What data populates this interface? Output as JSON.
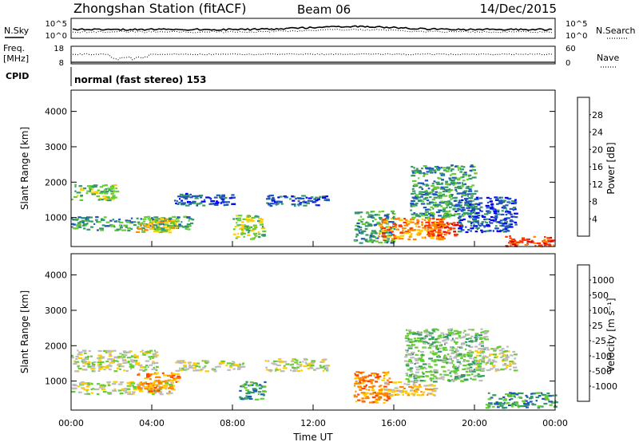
{
  "header": {
    "station": "Zhongshan Station (fitACF)",
    "beam": "Beam 06",
    "date": "14/Dec/2015"
  },
  "summary_panels": {
    "nsky_label": "N.Sky",
    "nsearch_label": "N.Search",
    "noise_ticks": [
      "10^5",
      "10^0"
    ],
    "freq_label_line1": "Freq.",
    "freq_label_line2": "[MHz]",
    "freq_ticks": [
      "18",
      "8"
    ],
    "nave_label": "Nave",
    "nave_ticks": [
      "60",
      "0"
    ],
    "cpid_label": "CPID",
    "cpid_text": "normal (fast stereo) 153"
  },
  "colorbars": {
    "power": {
      "title": "Power [dB]",
      "ticks": [
        "28",
        "24",
        "20",
        "16",
        "12",
        "8",
        "4"
      ],
      "colors": [
        "#0000ff",
        "#2255bb",
        "#339966",
        "#66cc33",
        "#ffcc00",
        "#ff8800",
        "#ff3300",
        "#dd0000"
      ]
    },
    "velocity": {
      "title": "Velocity [m s⁻¹]",
      "ticks": [
        "1000",
        "500",
        "100",
        "25",
        "-25",
        "-100",
        "-500",
        "-1000"
      ],
      "colors": [
        "#2233aa",
        "#2255bb",
        "#339966",
        "#66cc33",
        "#bbbbbb",
        "#ffcc00",
        "#ff8800",
        "#ff4400",
        "#dd0000"
      ]
    }
  },
  "chart_data": [
    {
      "type": "heatmap",
      "ylabel": "Slant Range [km]",
      "ylim": [
        180,
        4600
      ],
      "yticks": [
        "4000",
        "3000",
        "2000",
        "1000"
      ],
      "ytick_values": [
        4000,
        3000,
        2000,
        1000
      ],
      "xlim_hours": [
        0,
        24
      ],
      "regions": [
        {
          "t0": 0.0,
          "t1": 2.2,
          "r0": 1500,
          "r1": 1950,
          "level": 3
        },
        {
          "t0": 0.0,
          "t1": 6.0,
          "r0": 650,
          "r1": 1050,
          "level": 2
        },
        {
          "t0": 3.2,
          "t1": 5.2,
          "r0": 600,
          "r1": 1000,
          "level": 4
        },
        {
          "t0": 5.0,
          "t1": 8.0,
          "r0": 1350,
          "r1": 1700,
          "level": 1
        },
        {
          "t0": 8.0,
          "t1": 9.5,
          "r0": 400,
          "r1": 1100,
          "level": 3
        },
        {
          "t0": 9.6,
          "t1": 12.7,
          "r0": 1350,
          "r1": 1650,
          "level": 1
        },
        {
          "t0": 14.0,
          "t1": 16.0,
          "r0": 300,
          "r1": 1200,
          "level": 2
        },
        {
          "t0": 15.2,
          "t1": 18.5,
          "r0": 400,
          "r1": 1000,
          "level": 5
        },
        {
          "t0": 17.5,
          "t1": 19.3,
          "r0": 500,
          "r1": 900,
          "level": 6
        },
        {
          "t0": 16.8,
          "t1": 20.0,
          "r0": 1000,
          "r1": 2500,
          "level": 2
        },
        {
          "t0": 19.0,
          "t1": 22.0,
          "r0": 600,
          "r1": 1600,
          "level": 1
        },
        {
          "t0": 21.5,
          "t1": 24.0,
          "r0": 200,
          "r1": 500,
          "level": 6
        }
      ]
    },
    {
      "type": "heatmap",
      "ylabel": "Slant Range [km]",
      "ylim": [
        180,
        4600
      ],
      "yticks": [
        "4000",
        "3000",
        "2000",
        "1000"
      ],
      "ytick_values": [
        4000,
        3000,
        2000,
        1000
      ],
      "xlim_hours": [
        0,
        24
      ],
      "xlabel": "Time UT",
      "xticks": [
        "00:00",
        "04:00",
        "08:00",
        "12:00",
        "16:00",
        "20:00",
        "00:00"
      ],
      "xtick_hours": [
        0,
        4,
        8,
        12,
        16,
        20,
        24
      ],
      "regions": [
        {
          "t0": 0.0,
          "t1": 4.2,
          "r0": 1300,
          "r1": 1900,
          "level": 4
        },
        {
          "t0": 0.0,
          "t1": 5.0,
          "r0": 650,
          "r1": 1000,
          "level": 4
        },
        {
          "t0": 3.2,
          "t1": 5.3,
          "r0": 700,
          "r1": 1250,
          "level": 6
        },
        {
          "t0": 5.0,
          "t1": 8.5,
          "r0": 1300,
          "r1": 1600,
          "level": 4
        },
        {
          "t0": 8.3,
          "t1": 9.6,
          "r0": 500,
          "r1": 1000,
          "level": 2
        },
        {
          "t0": 9.6,
          "t1": 12.7,
          "r0": 1300,
          "r1": 1650,
          "level": 4
        },
        {
          "t0": 14.0,
          "t1": 15.8,
          "r0": 400,
          "r1": 1300,
          "level": 6
        },
        {
          "t0": 15.5,
          "t1": 18.0,
          "r0": 600,
          "r1": 1000,
          "level": 5
        },
        {
          "t0": 16.5,
          "t1": 20.5,
          "r0": 1000,
          "r1": 2500,
          "level": 3
        },
        {
          "t0": 20.0,
          "t1": 22.0,
          "r0": 1300,
          "r1": 2000,
          "level": 4
        },
        {
          "t0": 20.5,
          "t1": 24.0,
          "r0": 250,
          "r1": 700,
          "level": 2
        }
      ]
    }
  ]
}
